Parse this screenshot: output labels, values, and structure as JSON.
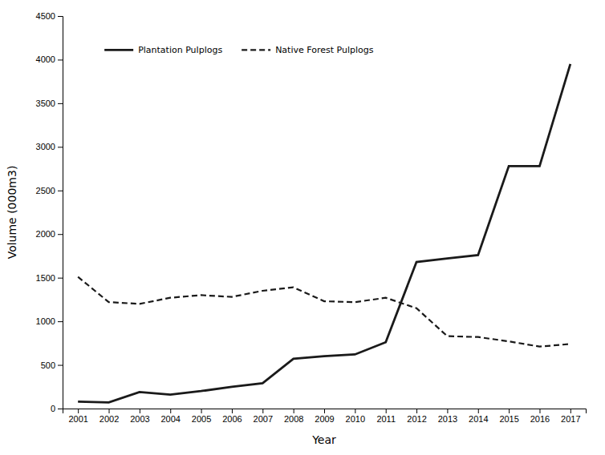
{
  "chart_data": {
    "type": "line",
    "x": [
      2001,
      2002,
      2003,
      2004,
      2005,
      2006,
      2007,
      2008,
      2009,
      2010,
      2011,
      2012,
      2013,
      2014,
      2015,
      2016,
      2017
    ],
    "xlabel": "Year",
    "ylabel": "Volume (000m3)",
    "xlim": [
      2000.5,
      2017.5
    ],
    "xticks": [
      2001,
      2002,
      2003,
      2004,
      2005,
      2006,
      2007,
      2008,
      2009,
      2010,
      2011,
      2012,
      2013,
      2014,
      2015,
      2016,
      2017
    ],
    "ylim": [
      0,
      4500
    ],
    "yticks": [
      0,
      500,
      1000,
      1500,
      2000,
      2500,
      3000,
      3500,
      4000,
      4500
    ],
    "grid": false,
    "legend": "upper left",
    "series": [
      {
        "name": "Plantation Pulplogs",
        "color": "#1a1a1a",
        "line_style": "solid",
        "values": [
          80,
          70,
          190,
          160,
          200,
          250,
          290,
          570,
          600,
          620,
          760,
          1680,
          1720,
          1760,
          2780,
          2780,
          3950
        ]
      },
      {
        "name": "Native Forest Pulplogs",
        "color": "#1a1a1a",
        "line_style": "dashed",
        "values": [
          1510,
          1220,
          1200,
          1270,
          1300,
          1280,
          1350,
          1390,
          1230,
          1220,
          1270,
          1150,
          830,
          820,
          770,
          710,
          740
        ]
      }
    ]
  }
}
